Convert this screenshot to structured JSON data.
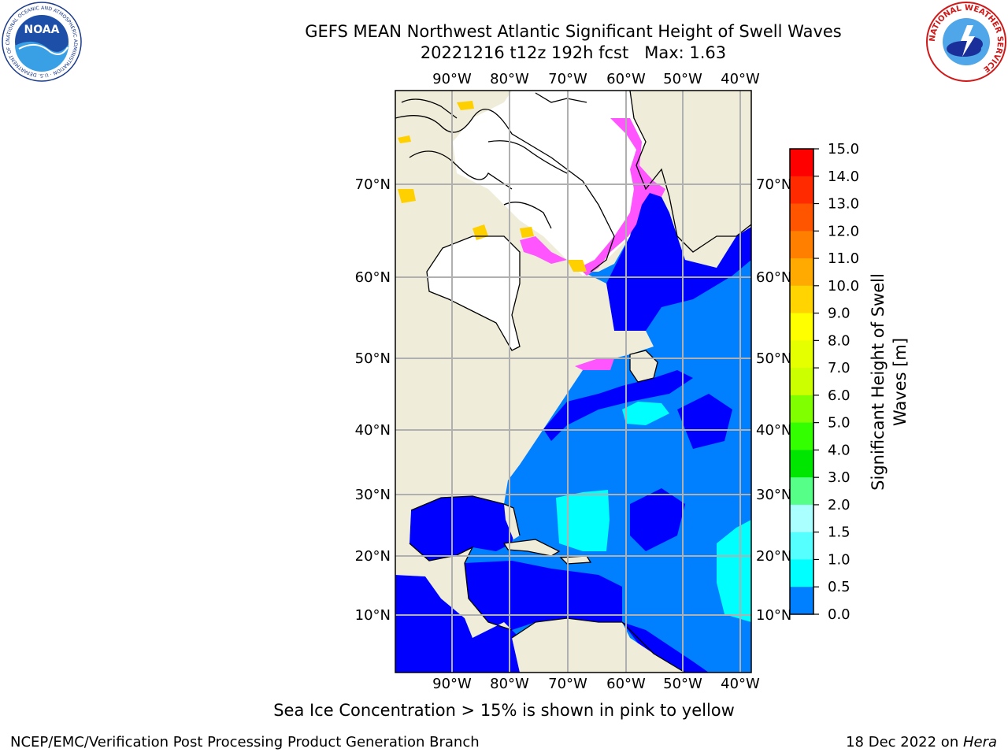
{
  "title": {
    "line1": "GEFS MEAN Northwest Atlantic Significant Height of Swell Waves",
    "line2": "20221216 t12z 192h fcst   Max: 1.63"
  },
  "map": {
    "lon_ticks": [
      "90°W",
      "80°W",
      "70°W",
      "60°W",
      "50°W",
      "40°W"
    ],
    "lat_ticks": [
      "70°N",
      "60°N",
      "50°N",
      "40°N",
      "30°N",
      "20°N",
      "10°N"
    ],
    "colors": {
      "land": "#efecd9",
      "ocean_low": "#0000ff",
      "ocean_mid": "#007fff",
      "ocean_high": "#00ffff",
      "ice_pink": "#ff55ff",
      "ice_yellow": "#ffd000",
      "gridline": "#b0b0b0"
    }
  },
  "colorbar": {
    "label": "Significant Height of Swell Waves [m]",
    "ticks": [
      "15.0",
      "14.0",
      "13.0",
      "12.0",
      "11.0",
      "10.0",
      "9.0",
      "8.0",
      "7.0",
      "6.0",
      "5.0",
      "4.0",
      "3.0",
      "2.0",
      "1.5",
      "1.0",
      "0.5",
      "0.0"
    ],
    "colors": [
      "#ff0000",
      "#ff2a00",
      "#ff5500",
      "#ff7f00",
      "#ffaa00",
      "#ffd400",
      "#ffff00",
      "#e6ff00",
      "#ccff00",
      "#80ff00",
      "#33ff00",
      "#00e600",
      "#55ff88",
      "#aaffff",
      "#55ffff",
      "#00ffff",
      "#007fff",
      "#0000ff"
    ]
  },
  "caption": "Sea Ice Concentration > 15% is shown in pink to yellow",
  "footer": {
    "org": "NCEP/EMC/Verification Post Processing Product Generation Branch",
    "date": "18 Dec 2022 on ",
    "host": "Hera"
  },
  "logos": {
    "noaa_text": "NOAA",
    "noaa_ring": "NATIONAL OCEANIC AND ATMOSPHERIC ADMINISTRATION · U.S. DEPARTMENT OF COMMERCE",
    "nws_ring": "NATIONAL WEATHER SERVICE"
  }
}
